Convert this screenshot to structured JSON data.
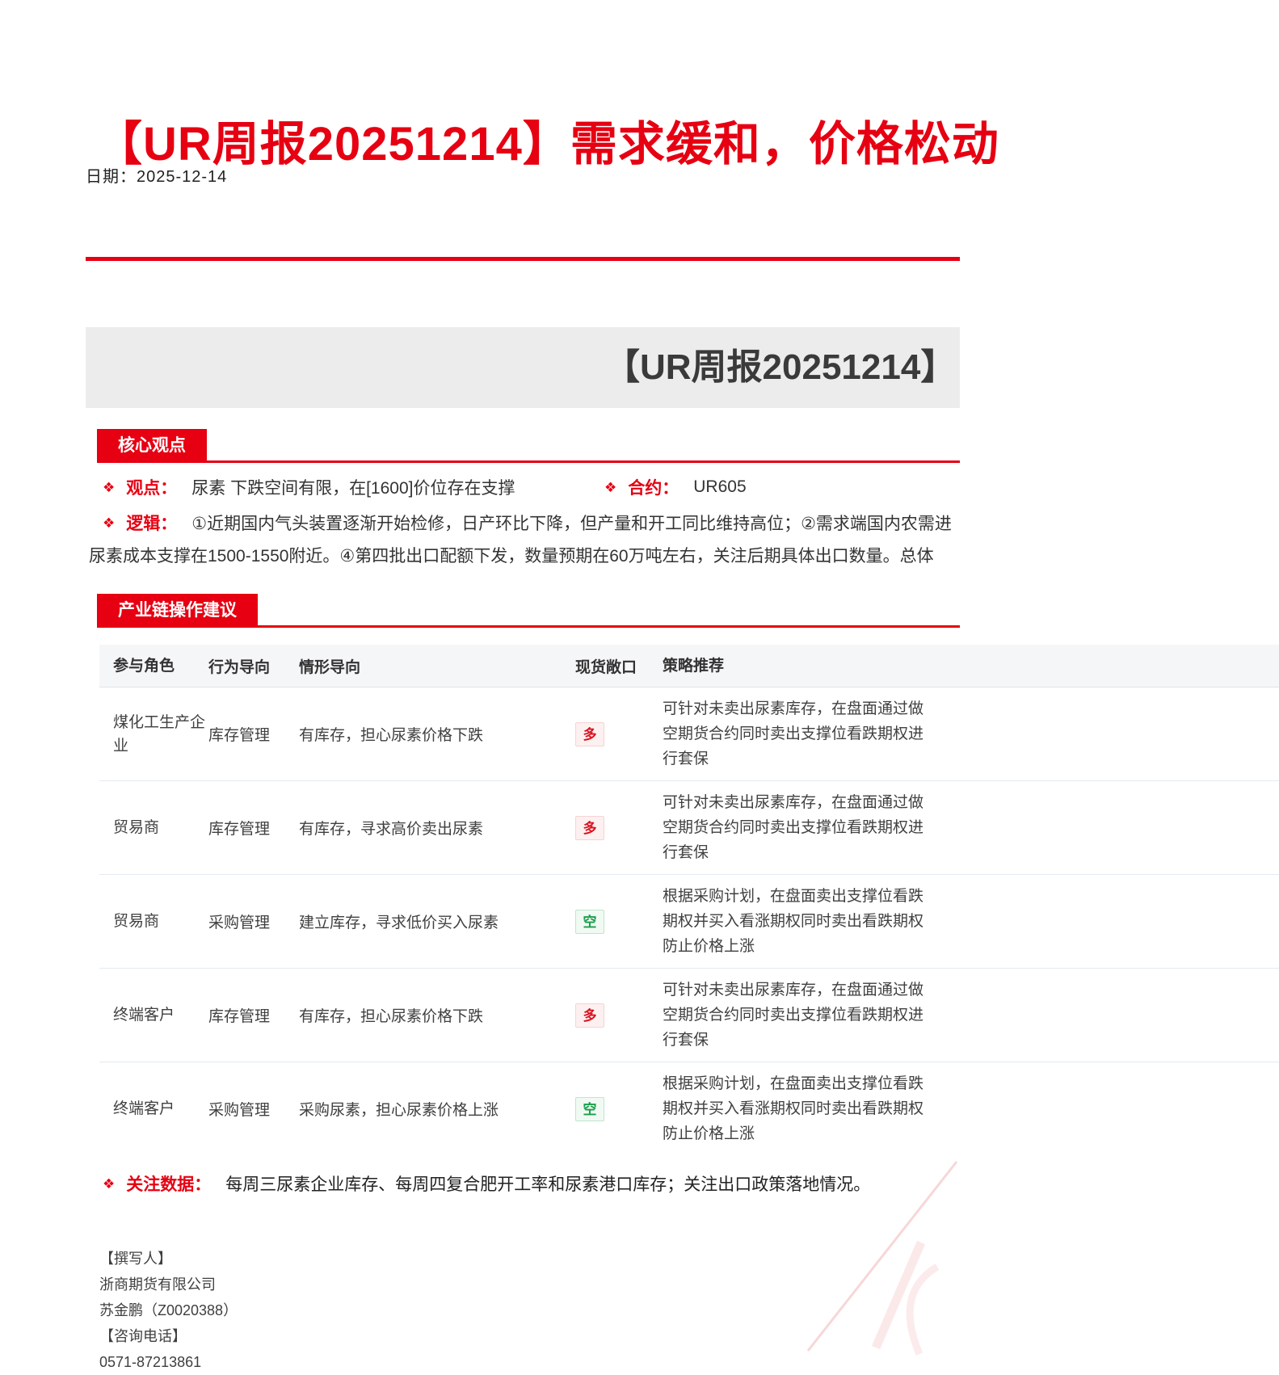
{
  "page": {
    "title": "【UR周报20251214】需求缓和，价格松动",
    "date_label": "日期：2025-12-14",
    "banner_title": "【UR周报20251214】"
  },
  "icons": {
    "bullet": "❖"
  },
  "colors": {
    "brand_red": "#e60012",
    "long_badge_red": "#d9121f",
    "short_badge_green": "#1a9e4b",
    "banner_gray": "#ececec"
  },
  "core": {
    "tab": "核心观点",
    "viewpoint_label": "观点：",
    "viewpoint_text": "尿素  下跌空间有限，在[1600]价位存在支撑",
    "contract_label": "合约：",
    "contract_value": "UR605",
    "logic_label": "逻辑：",
    "logic_line1": "①近期国内气头装置逐渐开始检修，日产环比下降，但产量和开工同比维持高位；②需求端国内农需进",
    "logic_line2": "尿素成本支撑在1500-1550附近。④第四批出口配额下发，数量预期在60万吨左右，关注后期具体出口数量。总体"
  },
  "industry": {
    "tab": "产业链操作建议",
    "table": {
      "headers": [
        "参与角色",
        "行为导向",
        "情形导向",
        "现货敞口",
        "策略推荐"
      ],
      "rows": [
        {
          "role": "煤化工生产企业",
          "action": "库存管理",
          "scenario": "有库存，担心尿素价格下跌",
          "exposure": "多",
          "exposure_type": "long",
          "strategy_lines": [
            "可针对未卖出尿素库存，在盘面通过做",
            "空期货合约同时卖出支撑位看跌期权进",
            "行套保"
          ]
        },
        {
          "role": "贸易商",
          "action": "库存管理",
          "scenario": "有库存，寻求高价卖出尿素",
          "exposure": "多",
          "exposure_type": "long",
          "strategy_lines": [
            "可针对未卖出尿素库存，在盘面通过做",
            "空期货合约同时卖出支撑位看跌期权进",
            "行套保"
          ]
        },
        {
          "role": "贸易商",
          "action": "采购管理",
          "scenario": "建立库存，寻求低价买入尿素",
          "exposure": "空",
          "exposure_type": "short",
          "strategy_lines": [
            "根据采购计划，在盘面卖出支撑位看跌",
            "期权并买入看涨期权同时卖出看跌期权",
            "防止价格上涨"
          ]
        },
        {
          "role": "终端客户",
          "action": "库存管理",
          "scenario": "有库存，担心尿素价格下跌",
          "exposure": "多",
          "exposure_type": "long",
          "strategy_lines": [
            "可针对未卖出尿素库存，在盘面通过做",
            "空期货合约同时卖出支撑位看跌期权进",
            "行套保"
          ]
        },
        {
          "role": "终端客户",
          "action": "采购管理",
          "scenario": "采购尿素，担心尿素价格上涨",
          "exposure": "空",
          "exposure_type": "short",
          "strategy_lines": [
            "根据采购计划，在盘面卖出支撑位看跌",
            "期权并买入看涨期权同时卖出看跌期权",
            "防止价格上涨"
          ]
        }
      ]
    }
  },
  "focus": {
    "label": "关注数据：",
    "text": "每周三尿素企业库存、每周四复合肥开工率和尿素港口库存；关注出口政策落地情况。"
  },
  "footer": {
    "lines": [
      "【撰写人】",
      "浙商期货有限公司",
      "苏金鹏（Z0020388）",
      "【咨询电话】",
      "0571-87213861"
    ]
  }
}
